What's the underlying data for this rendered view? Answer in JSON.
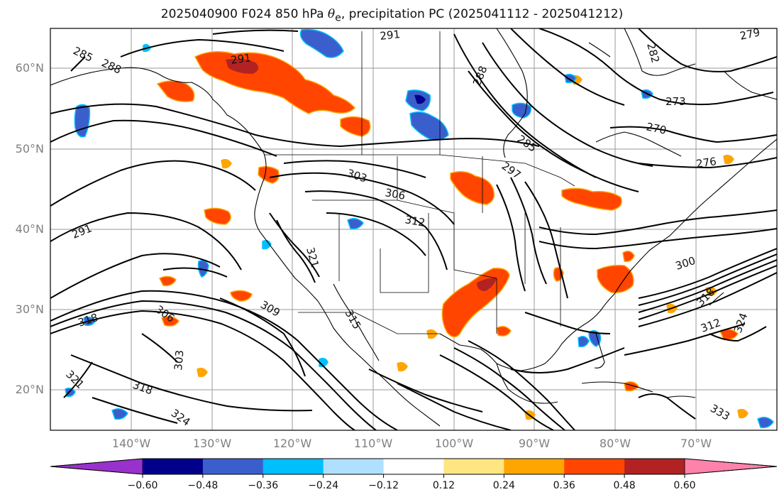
{
  "title": {
    "prefix": "2025040900 F024 850 hPa ",
    "symbol": "θ",
    "subscript": "e",
    "suffix": ", precipitation PC (2025041112 - 2025041212)"
  },
  "map_axes": {
    "lat_labels": [
      "60°N",
      "50°N",
      "40°N",
      "30°N",
      "20°N"
    ],
    "lon_labels": [
      "140°W",
      "130°W",
      "120°W",
      "110°W",
      "100°W",
      "90°W",
      "80°W",
      "70°W"
    ]
  },
  "colorbar": {
    "tick_labels": [
      "−0.60",
      "−0.48",
      "−0.36",
      "−0.24",
      "−0.12",
      "0.12",
      "0.24",
      "0.36",
      "0.48",
      "0.60"
    ],
    "colors": [
      "#9932cc",
      "#00008b",
      "#3a5fcd",
      "#00bfff",
      "#b0e0ff",
      "#ffffff",
      "#ffe680",
      "#ffa500",
      "#ff4500",
      "#b22222",
      "#ff82ab"
    ]
  },
  "contour_labels": [
    {
      "text": "285"
    },
    {
      "text": "288"
    },
    {
      "text": "291"
    },
    {
      "text": "291"
    },
    {
      "text": "288"
    },
    {
      "text": "282"
    },
    {
      "text": "279"
    },
    {
      "text": "273"
    },
    {
      "text": "270"
    },
    {
      "text": "276"
    },
    {
      "text": "285"
    },
    {
      "text": "297"
    },
    {
      "text": "303"
    },
    {
      "text": "306"
    },
    {
      "text": "312"
    },
    {
      "text": "291"
    },
    {
      "text": "321"
    },
    {
      "text": "309"
    },
    {
      "text": "306"
    },
    {
      "text": "303"
    },
    {
      "text": "318"
    },
    {
      "text": "321"
    },
    {
      "text": "318"
    },
    {
      "text": "324"
    },
    {
      "text": "300"
    },
    {
      "text": "318"
    },
    {
      "text": "312"
    },
    {
      "text": "315"
    },
    {
      "text": "324"
    },
    {
      "text": "333"
    }
  ]
}
